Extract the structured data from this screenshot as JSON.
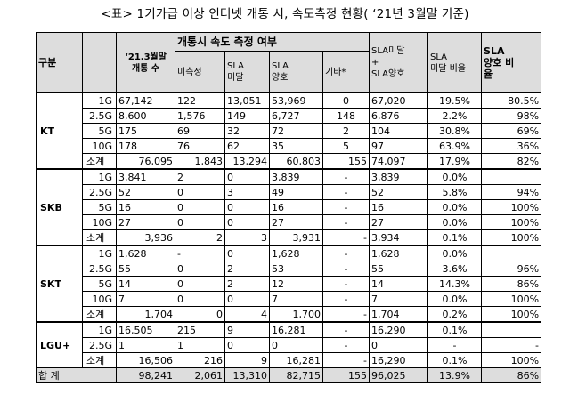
{
  "caption": "<표> 1기가급 이상 인터넷 개통 시, 속도측정 현황( ‘21년 3월말 기준)",
  "headers": {
    "category": "구분",
    "subscribers_line1": "‘21.3월말",
    "subscribers_line2": "개통 수",
    "group": "개통시 속도 측정 여부",
    "not_measured": "미측정",
    "sla_below_line1": "SLA",
    "sla_below_line2": "미달",
    "sla_good_line1": "SLA",
    "sla_good_line2": "양호",
    "other": "기타*",
    "sla_combined_line1": "SLA미달",
    "sla_combined_line2": "+",
    "sla_combined_line3": "SLA양호",
    "below_ratio_line1": "SLA",
    "below_ratio_line2": "미달 비율",
    "good_ratio_line1": "SLA",
    "good_ratio_line2": "양호 비",
    "good_ratio_line3": "율"
  },
  "groups": [
    {
      "operator": "KT",
      "rows": [
        {
          "speed": "1G",
          "subs": "67,142",
          "nm": "122",
          "below": "13,051",
          "good": "53,969",
          "other": "0",
          "combined": "67,020",
          "below_ratio": "19.5%",
          "good_ratio": "80.5%"
        },
        {
          "speed": "2.5G",
          "subs": "8,600",
          "nm": "1,576",
          "below": "149",
          "good": "6,727",
          "other": "148",
          "combined": "6,876",
          "below_ratio": "2.2%",
          "good_ratio": "98%"
        },
        {
          "speed": "5G",
          "subs": "175",
          "nm": "69",
          "below": "32",
          "good": "72",
          "other": "2",
          "combined": "104",
          "below_ratio": "30.8%",
          "good_ratio": "69%"
        },
        {
          "speed": "10G",
          "subs": "178",
          "nm": "76",
          "below": "62",
          "good": "35",
          "other": "5",
          "combined": "97",
          "below_ratio": "63.9%",
          "good_ratio": "36%"
        }
      ],
      "subtotal": {
        "speed": "소계",
        "subs": "76,095",
        "nm": "1,843",
        "below": "13,294",
        "good": "60,803",
        "other": "155",
        "combined": "74,097",
        "below_ratio": "17.9%",
        "good_ratio": "82%"
      }
    },
    {
      "operator": "SKB",
      "rows": [
        {
          "speed": "1G",
          "subs": "3,841",
          "nm": "2",
          "below": "0",
          "good": "3,839",
          "other": "-",
          "combined": "3,839",
          "below_ratio": "0.0%",
          "good_ratio": ""
        },
        {
          "speed": "2.5G",
          "subs": "52",
          "nm": "0",
          "below": "3",
          "good": "49",
          "other": "-",
          "combined": "52",
          "below_ratio": "5.8%",
          "good_ratio": "94%"
        },
        {
          "speed": "5G",
          "subs": "16",
          "nm": "0",
          "below": "0",
          "good": "16",
          "other": "-",
          "combined": "16",
          "below_ratio": "0.0%",
          "good_ratio": "100%"
        },
        {
          "speed": "10G",
          "subs": "27",
          "nm": "0",
          "below": "0",
          "good": "27",
          "other": "-",
          "combined": "27",
          "below_ratio": "0.0%",
          "good_ratio": "100%"
        }
      ],
      "subtotal": {
        "speed": "소계",
        "subs": "3,936",
        "nm": "2",
        "below": "3",
        "good": "3,931",
        "other": "-",
        "combined": "3,934",
        "below_ratio": "0.1%",
        "good_ratio": "100%"
      }
    },
    {
      "operator": "SKT",
      "rows": [
        {
          "speed": "1G",
          "subs": "1,628",
          "nm": "-",
          "below": "0",
          "good": "1,628",
          "other": "-",
          "combined": "1,628",
          "below_ratio": "0.0%",
          "good_ratio": ""
        },
        {
          "speed": "2.5G",
          "subs": "55",
          "nm": "0",
          "below": "2",
          "good": "53",
          "other": "-",
          "combined": "55",
          "below_ratio": "3.6%",
          "good_ratio": "96%"
        },
        {
          "speed": "5G",
          "subs": "14",
          "nm": "0",
          "below": "2",
          "good": "12",
          "other": "-",
          "combined": "14",
          "below_ratio": "14.3%",
          "good_ratio": "86%"
        },
        {
          "speed": "10G",
          "subs": "7",
          "nm": "0",
          "below": "0",
          "good": "7",
          "other": "-",
          "combined": "7",
          "below_ratio": "0.0%",
          "good_ratio": "100%"
        }
      ],
      "subtotal": {
        "speed": "소계",
        "subs": "1,704",
        "nm": "0",
        "below": "4",
        "good": "1,700",
        "other": "-",
        "combined": "1,704",
        "below_ratio": "0.2%",
        "good_ratio": "100%"
      }
    },
    {
      "operator": "LGU+",
      "rows": [
        {
          "speed": "1G",
          "subs": "16,505",
          "nm": "215",
          "below": "9",
          "good": "16,281",
          "other": "-",
          "combined": "16,290",
          "below_ratio": "0.1%",
          "good_ratio": ""
        },
        {
          "speed": "2.5G",
          "subs": "1",
          "nm": "1",
          "below": "0",
          "good": "0",
          "other": "-",
          "combined": "0",
          "below_ratio": "-",
          "good_ratio": "-"
        }
      ],
      "subtotal": {
        "speed": "소계",
        "subs": "16,506",
        "nm": "216",
        "below": "9",
        "good": "16,281",
        "other": "-",
        "combined": "16,290",
        "below_ratio": "0.1%",
        "good_ratio": "100%"
      }
    }
  ],
  "total": {
    "label": "합 계",
    "subs": "98,241",
    "nm": "2,061",
    "below": "13,310",
    "good": "82,715",
    "other": "155",
    "combined": "96,025",
    "below_ratio": "13.9%",
    "good_ratio": "86%"
  }
}
